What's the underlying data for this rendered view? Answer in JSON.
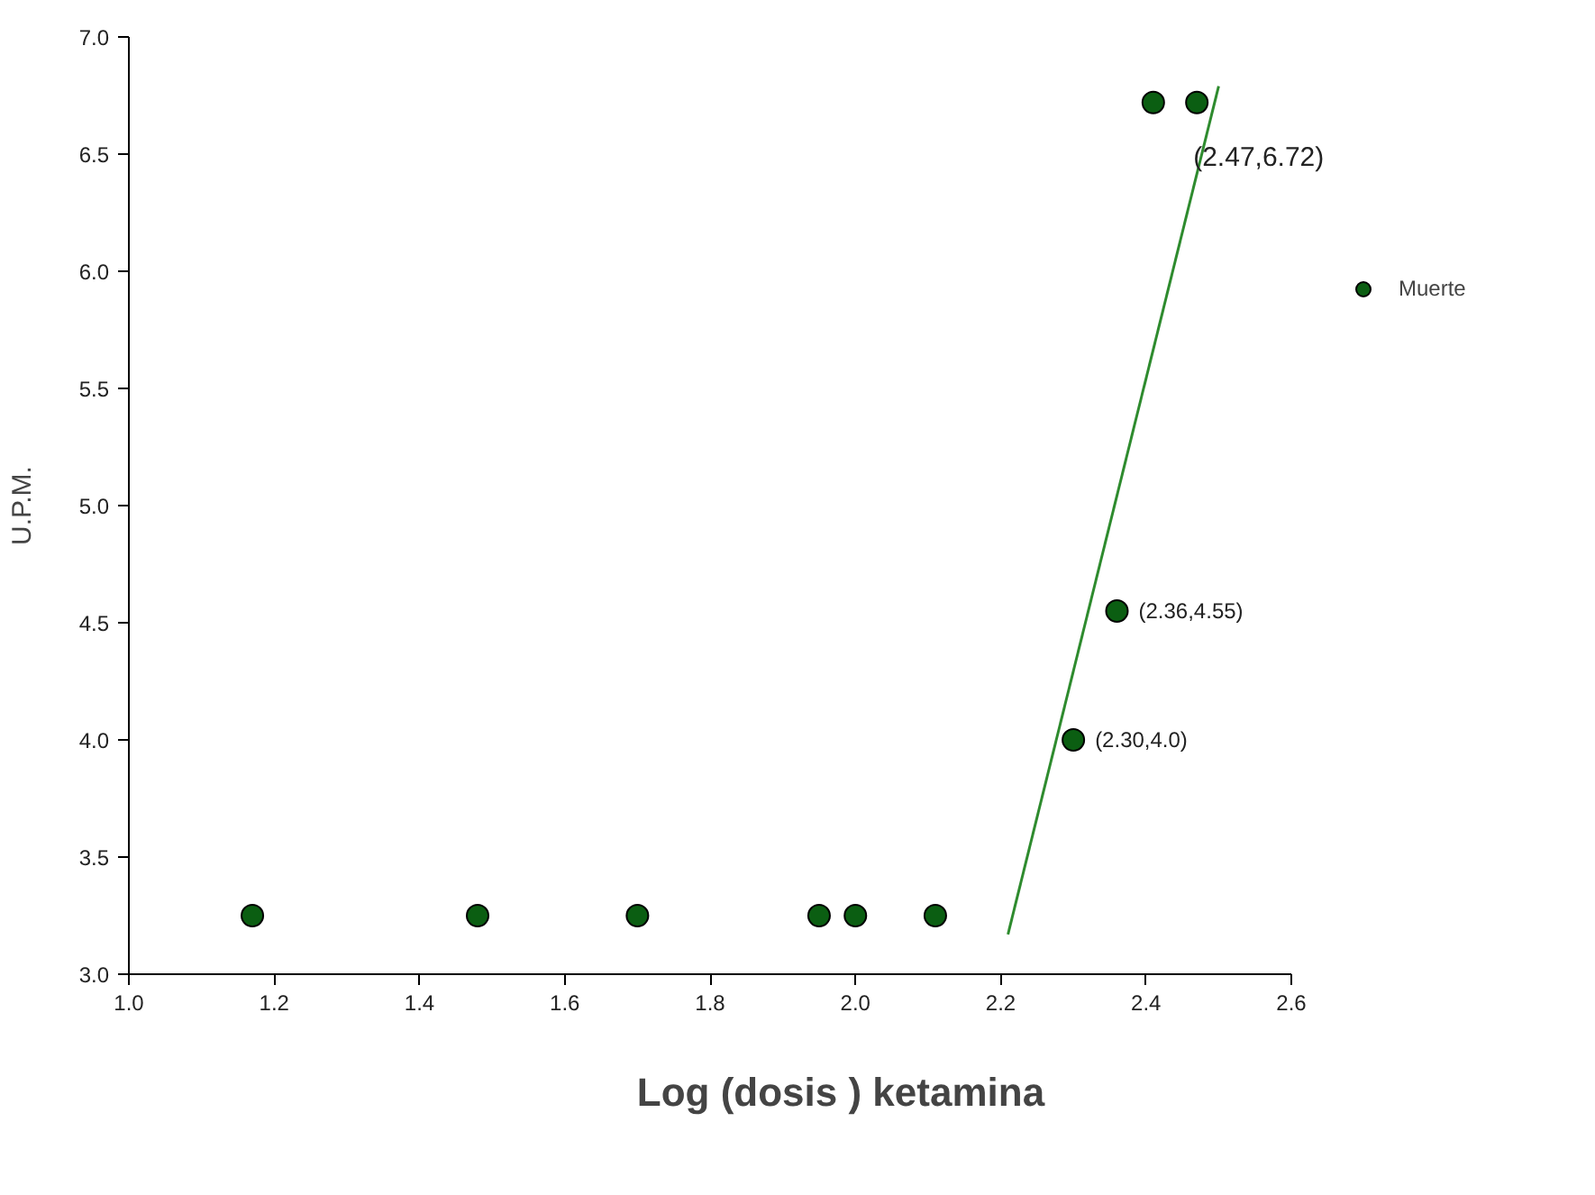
{
  "chart_data": {
    "type": "scatter",
    "xlabel": "Log (dosis ) ketamina",
    "ylabel": "U.P.M.",
    "xlim": [
      1.0,
      2.6
    ],
    "xticks": [
      {
        "value": 1.0,
        "label": "1.0"
      },
      {
        "value": 1.2,
        "label": "1.2"
      },
      {
        "value": 1.4,
        "label": "1.4"
      },
      {
        "value": 1.6,
        "label": "1.6"
      },
      {
        "value": 1.8,
        "label": "1.8"
      },
      {
        "value": 2.0,
        "label": "2.0"
      },
      {
        "value": 2.2,
        "label": "2.2"
      },
      {
        "value": 2.4,
        "label": "2.4"
      },
      {
        "value": 2.6,
        "label": "2.6"
      }
    ],
    "ylim": [
      3.0,
      7.0
    ],
    "yticks": [
      {
        "value": 3.0,
        "label": "3.0"
      },
      {
        "value": 3.5,
        "label": "3.5"
      },
      {
        "value": 4.0,
        "label": "4.0"
      },
      {
        "value": 4.5,
        "label": "4.5"
      },
      {
        "value": 5.0,
        "label": "5.0"
      },
      {
        "value": 5.5,
        "label": "5.5"
      },
      {
        "value": 6.0,
        "label": "6.0"
      },
      {
        "value": 6.5,
        "label": "6.5"
      },
      {
        "value": 7.0,
        "label": "7.0"
      }
    ],
    "grid": false,
    "legend": "right",
    "series": [
      {
        "name": "Muerte",
        "marker": "circle",
        "color": "#0b5e12",
        "x": [
          1.17,
          1.48,
          1.7,
          1.95,
          2.0,
          2.11,
          2.3,
          2.36,
          2.41,
          2.47
        ],
        "values": [
          3.25,
          3.25,
          3.25,
          3.25,
          3.25,
          3.25,
          4.0,
          4.55,
          6.72,
          6.72
        ]
      },
      {
        "type": "line",
        "color": "#2e8b2e",
        "x": [
          2.21,
          2.5
        ],
        "values": [
          3.17,
          6.79
        ]
      }
    ],
    "annotations": [
      {
        "text": "(2.47,6.72)",
        "x": 2.47,
        "y": 6.72
      },
      {
        "text": "(2.36,4.55)",
        "x": 2.36,
        "y": 4.55
      },
      {
        "text": "(2.30,4.0)",
        "x": 2.3,
        "y": 4.0
      }
    ]
  }
}
